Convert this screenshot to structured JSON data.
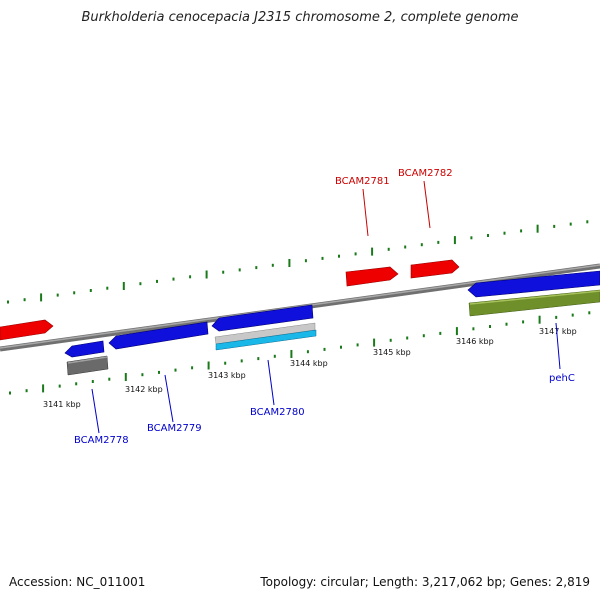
{
  "title": "Burkholderia cenocepacia J2315 chromosome 2, complete genome",
  "footer": {
    "accession": "Accession: NC_011001",
    "summary": "Topology: circular; Length: 3,217,062 bp; Genes: 2,819"
  },
  "colors": {
    "backbone": "#808080",
    "tick": "#1a7a1a",
    "forward_gene": "#ee0000",
    "reverse_gene": "#1010dd",
    "forward_label": "#cc0000",
    "reverse_label": "#0000cc",
    "rna_gray": "#6a6a6a",
    "silver": "#c8c8c8",
    "cyan": "#1ab8e8",
    "olive": "#6f8f2a"
  },
  "scale_labels": [
    "3141 kbp",
    "3142 kbp",
    "3143 kbp",
    "3144 kbp",
    "3145 kbp",
    "3146 kbp",
    "3147 kbp"
  ],
  "gene_labels": {
    "forward": [
      "BCAM2781",
      "BCAM2782"
    ],
    "reverse": [
      "BCAM2778",
      "BCAM2779",
      "BCAM2780",
      "pehC"
    ]
  }
}
